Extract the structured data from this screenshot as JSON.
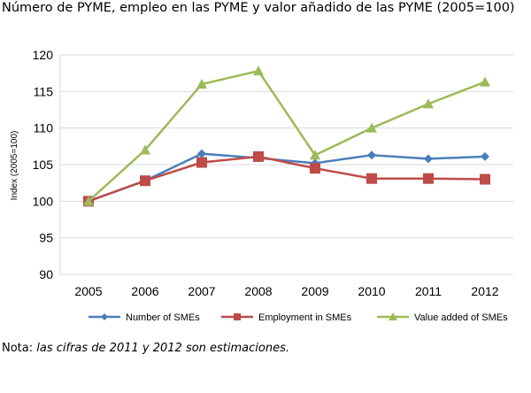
{
  "title": "Número de PYME, empleo en las PYME y valor añadido de las PYME (2005=100)",
  "note": {
    "label": "Nota:",
    "text": "las cifras de 2011 y 2012 son estimaciones."
  },
  "colors": {
    "number": "#4a7ebb",
    "employment": "#be4b48",
    "value_added": "#9bbb59",
    "grid": "#d9d9d9"
  },
  "chart_data": {
    "type": "line",
    "title": "",
    "xlabel": "",
    "ylabel": "Index (2005=100)",
    "x": [
      "2005",
      "2006",
      "2007",
      "2008",
      "2009",
      "2010",
      "2011",
      "2012"
    ],
    "ylim": [
      90,
      120
    ],
    "yticks": [
      90,
      95,
      100,
      105,
      110,
      115,
      120
    ],
    "grid": true,
    "legend": "bottom",
    "series": [
      {
        "name": "Number of SMEs",
        "marker": "diamond",
        "values": [
          100,
          102.8,
          106.5,
          105.9,
          105.2,
          106.3,
          105.8,
          106.1
        ]
      },
      {
        "name": "Employment in SMEs",
        "marker": "square",
        "values": [
          100,
          102.8,
          105.3,
          106.1,
          104.5,
          103.1,
          103.1,
          103.0
        ]
      },
      {
        "name": "Value added of SMEs",
        "marker": "triangle",
        "values": [
          100,
          107.0,
          116.0,
          117.8,
          106.3,
          110.0,
          113.3,
          116.3
        ]
      }
    ]
  }
}
